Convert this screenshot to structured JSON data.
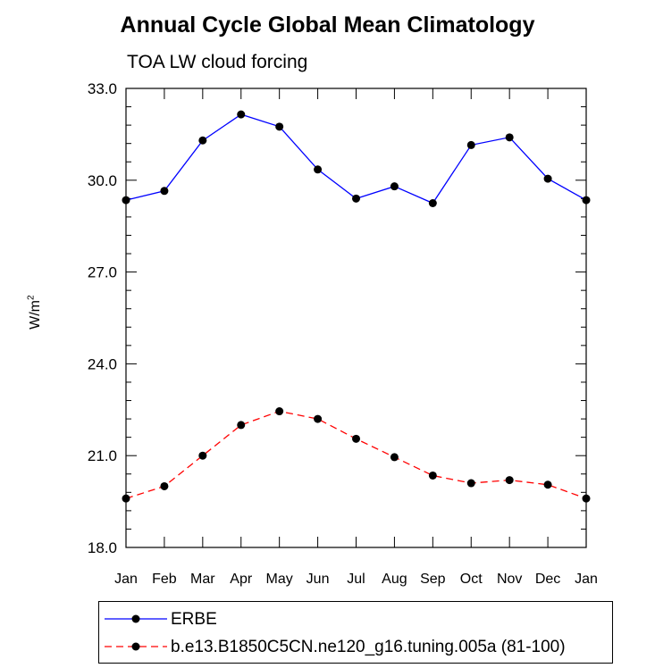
{
  "title": "Annual Cycle Global Mean Climatology",
  "subtitle": "TOA LW cloud forcing",
  "ylabel_base": "W/m",
  "ylabel_sup": "2",
  "chart_data": {
    "type": "line",
    "title": "Annual Cycle Global Mean Climatology",
    "subtitle": "TOA LW cloud forcing",
    "xlabel": "",
    "ylabel": "W/m2",
    "categories": [
      "Jan",
      "Feb",
      "Mar",
      "Apr",
      "May",
      "Jun",
      "Jul",
      "Aug",
      "Sep",
      "Oct",
      "Nov",
      "Dec",
      "Jan"
    ],
    "ylim": [
      18.0,
      33.0
    ],
    "yticks": [
      18.0,
      21.0,
      24.0,
      27.0,
      30.0,
      33.0
    ],
    "ytick_labels": [
      "18.0",
      "21.0",
      "24.0",
      "27.0",
      "30.0",
      "33.0"
    ],
    "series": [
      {
        "name": "ERBE",
        "color": "#0000ff",
        "dash": "solid",
        "values": [
          29.35,
          29.65,
          31.3,
          32.15,
          31.75,
          30.35,
          29.4,
          29.8,
          29.25,
          31.15,
          31.4,
          30.05,
          29.35
        ]
      },
      {
        "name": "b.e13.B1850C5CN.ne120_g16.tuning.005a (81-100)",
        "color": "#ff0000",
        "dash": "dashed",
        "values": [
          19.6,
          20.0,
          21.0,
          22.0,
          22.45,
          22.2,
          21.55,
          20.95,
          20.35,
          20.1,
          20.2,
          20.05,
          19.6
        ]
      }
    ],
    "legend_position": "bottom"
  }
}
